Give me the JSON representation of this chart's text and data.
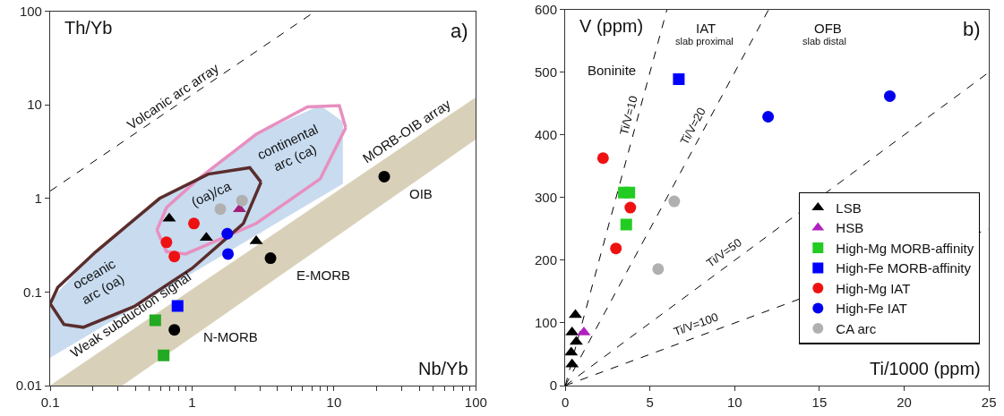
{
  "chart_data": [
    {
      "type": "scatter",
      "title": "a)",
      "xlabel": "Nb/Yb",
      "ylabel": "Th/Yb",
      "log": "xy",
      "xlim": [
        0.1,
        100
      ],
      "ylim": [
        0.01,
        100
      ],
      "xticks": [
        0.1,
        {
          "value": 0.2,
          "label": null
        },
        {
          "value": 0.3,
          "label": null
        },
        {
          "value": 0.4,
          "label": null
        },
        {
          "value": 0.5,
          "label": null
        },
        {
          "value": 0.6,
          "label": null
        },
        {
          "value": 0.7,
          "label": null
        },
        {
          "value": 0.8,
          "label": null
        },
        {
          "value": 0.9,
          "label": null
        },
        1,
        {
          "value": 2,
          "label": null
        },
        {
          "value": 3,
          "label": null
        },
        {
          "value": 4,
          "label": null
        },
        {
          "value": 5,
          "label": null
        },
        {
          "value": 6,
          "label": null
        },
        {
          "value": 7,
          "label": null
        },
        {
          "value": 8,
          "label": null
        },
        {
          "value": 9,
          "label": null
        },
        10,
        {
          "value": 20,
          "label": null
        },
        {
          "value": 30,
          "label": null
        },
        {
          "value": 40,
          "label": null
        },
        {
          "value": 50,
          "label": null
        },
        {
          "value": 60,
          "label": null
        },
        {
          "value": 70,
          "label": null
        },
        {
          "value": 80,
          "label": null
        },
        {
          "value": 90,
          "label": null
        },
        100
      ],
      "yticks": [
        0.01,
        0.1,
        1,
        10,
        100
      ],
      "annotations": [
        "Volcanic arc array",
        "MORB-OIB array",
        "continental\narc (ca)",
        "(oa)/ca",
        "oceanic\narc (oa)",
        "Weak subduction signal",
        "OIB",
        "E-MORB",
        "N-MORB"
      ],
      "series": [
        {
          "type": "area",
          "color": "#d8d0b8",
          "x": [
            0.1,
            100,
            100,
            0.32,
            0.1
          ],
          "values": [
            0.01,
            12,
            4.3,
            0.01,
            0.01
          ]
        },
        {
          "type": "area",
          "color": "#c8dbef",
          "x": [
            0.1,
            11.5,
            11.5,
            8.0,
            2.83,
            1.11,
            0.59,
            0.21,
            0.1,
            0.1
          ],
          "values": [
            0.02,
            1.44,
            6.6,
            9.8,
            4.85,
            1.62,
            1.0,
            0.27,
            0.081,
            0.02
          ]
        },
        {
          "type": "line",
          "color": "#000000",
          "line_style": "dashed",
          "x": [
            0.1,
            7.4
          ],
          "values": [
            1.2,
            100
          ]
        },
        {
          "type": "line",
          "color": "#e88fc0",
          "x": [
            0.565,
            0.66,
            0.9,
            2.83,
            8.0,
            12.1
          ],
          "values": [
            0.46,
            0.27,
            0.255,
            0.54,
            1.62,
            5.7
          ]
        },
        {
          "type": "line",
          "color": "#e88fc0",
          "x": [
            0.565,
            0.66,
            1.11,
            2.83,
            6.5,
            10.9,
            12.1
          ],
          "values": [
            0.46,
            0.8,
            1.62,
            4.85,
            9.5,
            9.8,
            5.7
          ]
        },
        {
          "type": "line",
          "color": "#5a2d2d",
          "x": [
            0.1,
            0.125,
            0.171,
            0.39,
            1.0,
            2.3,
            3.06
          ],
          "values": [
            0.075,
            0.045,
            0.042,
            0.07,
            0.179,
            0.54,
            1.49
          ]
        },
        {
          "type": "line",
          "color": "#5a2d2d",
          "x": [
            0.1,
            0.113,
            0.21,
            0.59,
            1.3,
            2.55,
            3.06
          ],
          "values": [
            0.075,
            0.112,
            0.27,
            1.0,
            1.82,
            2.13,
            1.49
          ]
        },
        {
          "color": "#000000",
          "marker": "circle",
          "x": [
            22.6,
            3.57,
            0.75
          ],
          "values": [
            1.71,
            0.23,
            0.0395
          ]
        },
        {
          "color": "#000000",
          "marker": "triangle",
          "x": [
            0.69,
            1.26,
            2.83
          ],
          "values": [
            0.61,
            0.38,
            0.35
          ]
        },
        {
          "color": "#a0207a",
          "marker": "triangle",
          "x": [
            2.16
          ],
          "values": [
            0.77
          ]
        },
        {
          "color": "#22aa22",
          "marker": "square",
          "x": [
            0.55,
            0.63
          ],
          "values": [
            0.05,
            0.021
          ]
        },
        {
          "color": "#0000ff",
          "marker": "square",
          "x": [
            0.79
          ],
          "values": [
            0.071
          ]
        },
        {
          "color": "#ee1111",
          "marker": "circle",
          "x": [
            1.03,
            0.66,
            0.75
          ],
          "values": [
            0.54,
            0.34,
            0.24
          ]
        },
        {
          "color": "#0000ee",
          "marker": "circle",
          "x": [
            1.77,
            1.79
          ],
          "values": [
            0.42,
            0.255
          ]
        },
        {
          "color": "#b0b0b0",
          "marker": "circle",
          "x": [
            1.58,
            2.25
          ],
          "values": [
            0.77,
            0.95
          ]
        }
      ]
    },
    {
      "type": "scatter",
      "title": "b)",
      "xlabel": "Ti/1000 (ppm)",
      "ylabel": "V (ppm)",
      "legend": "bottom right",
      "xlim": [
        0,
        25
      ],
      "ylim": [
        0,
        600
      ],
      "xticks": [
        0,
        5,
        10,
        15,
        20,
        25
      ],
      "yticks": [
        0,
        100,
        200,
        300,
        400,
        500,
        600
      ],
      "annotations": [
        "Boninite",
        "IAT",
        "slab proximal",
        "OFB",
        "slab distal",
        "Ti/V=10",
        "Ti/V=20",
        "Ti/V=50",
        "Ti/V=100"
      ],
      "series": [
        {
          "type": "line",
          "color": "#000000",
          "line_style": "dashed",
          "x": [
            0,
            6
          ],
          "values": [
            0,
            600
          ]
        },
        {
          "type": "line",
          "color": "#000000",
          "line_style": "dashed",
          "x": [
            0,
            12
          ],
          "values": [
            0,
            600
          ]
        },
        {
          "type": "line",
          "color": "#000000",
          "line_style": "dashed",
          "x": [
            0,
            25
          ],
          "values": [
            0,
            500
          ]
        },
        {
          "type": "line",
          "color": "#000000",
          "line_style": "dashed",
          "x": [
            0,
            25
          ],
          "values": [
            0,
            250
          ]
        },
        {
          "name": "LSB",
          "color": "#000000",
          "marker": "triangle",
          "x": [
            0.6,
            0.4,
            0.65,
            0.35,
            0.4
          ],
          "values": [
            113,
            85,
            70,
            53,
            34
          ]
        },
        {
          "name": "HSB",
          "color": "#b020c0",
          "marker": "triangle",
          "x": [
            1.1
          ],
          "values": [
            85
          ]
        },
        {
          "name": "High-Mg MORB-affinity",
          "color": "#22cc22",
          "marker": "square",
          "x": [
            3.46,
            3.78,
            3.6
          ],
          "values": [
            308,
            308,
            257
          ]
        },
        {
          "name": "High-Fe MORB-affinity",
          "color": "#0000ff",
          "marker": "square",
          "x": [
            6.7
          ],
          "values": [
            489
          ]
        },
        {
          "name": "High-Mg IAT",
          "color": "#ee1111",
          "marker": "circle",
          "x": [
            2.23,
            3.84,
            2.99
          ],
          "values": [
            363,
            284,
            219
          ]
        },
        {
          "name": "High-Fe IAT",
          "color": "#0000ee",
          "marker": "circle",
          "x": [
            11.97,
            19.15
          ],
          "values": [
            429,
            462
          ]
        },
        {
          "name": "CA arc",
          "color": "#b0b0b0",
          "marker": "circle",
          "x": [
            6.43,
            5.48
          ],
          "values": [
            294,
            186
          ]
        }
      ]
    }
  ]
}
